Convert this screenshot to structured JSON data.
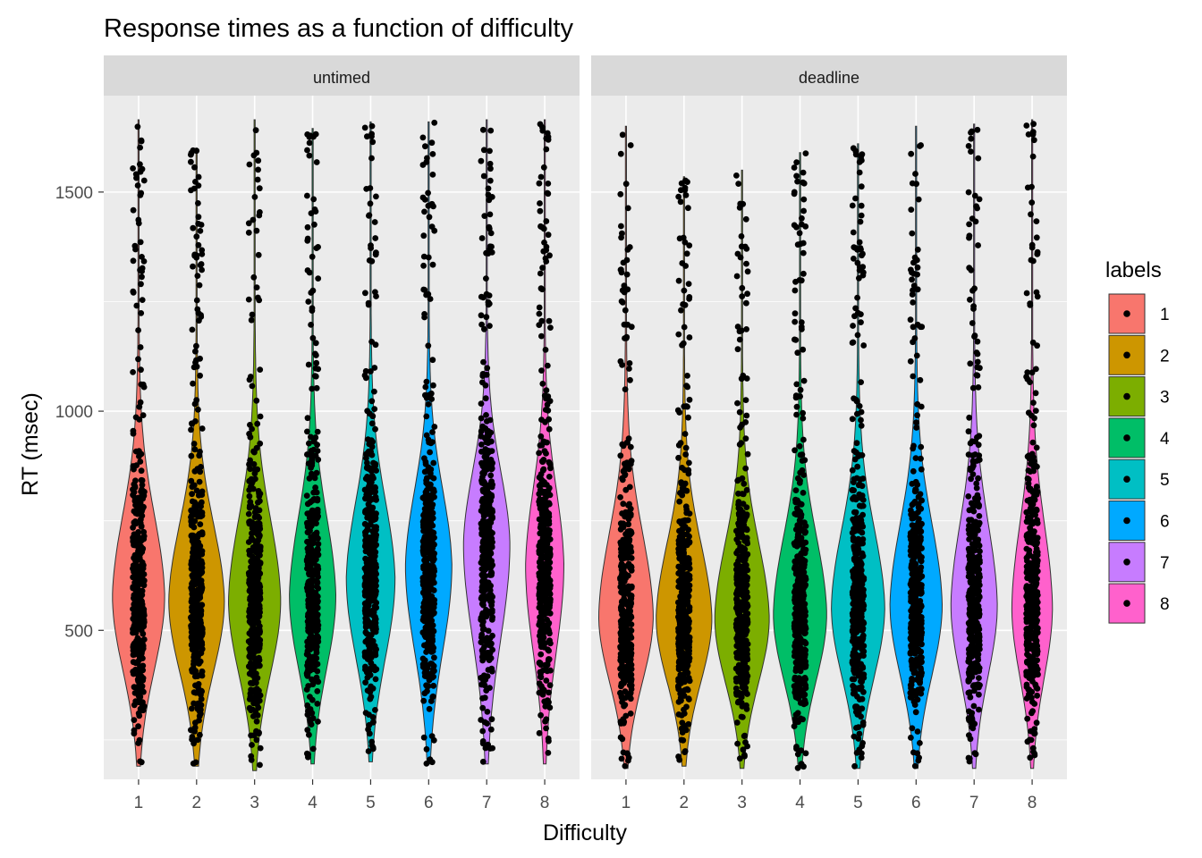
{
  "chart_data": {
    "type": "violin",
    "title": "Response times as a function of difficulty",
    "xlabel": "Difficulty",
    "ylabel": "RT (msec)",
    "ylim": [
      160,
      1720
    ],
    "yticks": [
      500,
      1000,
      1500
    ],
    "grid": true,
    "legend": {
      "title": "labels",
      "position": "right"
    },
    "categories": [
      "1",
      "2",
      "3",
      "4",
      "5",
      "6",
      "7",
      "8"
    ],
    "colors": [
      "#F8766D",
      "#CD9600",
      "#7CAE00",
      "#00BE67",
      "#00BFC4",
      "#00A9FF",
      "#C77CFF",
      "#FF61CC"
    ],
    "panels": [
      {
        "name": "untimed",
        "series": [
          {
            "difficulty": "1",
            "min": 190,
            "max": 1665,
            "mode": 580,
            "max_half_width": 0.45
          },
          {
            "difficulty": "2",
            "min": 190,
            "max": 1600,
            "mode": 570,
            "max_half_width": 0.48
          },
          {
            "difficulty": "3",
            "min": 180,
            "max": 1665,
            "mode": 570,
            "max_half_width": 0.45
          },
          {
            "difficulty": "4",
            "min": 195,
            "max": 1645,
            "mode": 580,
            "max_half_width": 0.4
          },
          {
            "difficulty": "5",
            "min": 200,
            "max": 1660,
            "mode": 620,
            "max_half_width": 0.42
          },
          {
            "difficulty": "6",
            "min": 195,
            "max": 1660,
            "mode": 650,
            "max_half_width": 0.4
          },
          {
            "difficulty": "7",
            "min": 195,
            "max": 1665,
            "mode": 700,
            "max_half_width": 0.4
          },
          {
            "difficulty": "8",
            "min": 195,
            "max": 1665,
            "mode": 650,
            "max_half_width": 0.33
          }
        ]
      },
      {
        "name": "deadline",
        "series": [
          {
            "difficulty": "1",
            "min": 185,
            "max": 1650,
            "mode": 535,
            "max_half_width": 0.47
          },
          {
            "difficulty": "2",
            "min": 190,
            "max": 1535,
            "mode": 530,
            "max_half_width": 0.48
          },
          {
            "difficulty": "3",
            "min": 185,
            "max": 1550,
            "mode": 530,
            "max_half_width": 0.47
          },
          {
            "difficulty": "4",
            "min": 185,
            "max": 1590,
            "mode": 540,
            "max_half_width": 0.46
          },
          {
            "difficulty": "5",
            "min": 185,
            "max": 1610,
            "mode": 555,
            "max_half_width": 0.46
          },
          {
            "difficulty": "6",
            "min": 185,
            "max": 1650,
            "mode": 560,
            "max_half_width": 0.45
          },
          {
            "difficulty": "7",
            "min": 185,
            "max": 1655,
            "mode": 560,
            "max_half_width": 0.4
          },
          {
            "difficulty": "8",
            "min": 185,
            "max": 1665,
            "mode": 555,
            "max_half_width": 0.35
          }
        ]
      }
    ]
  }
}
